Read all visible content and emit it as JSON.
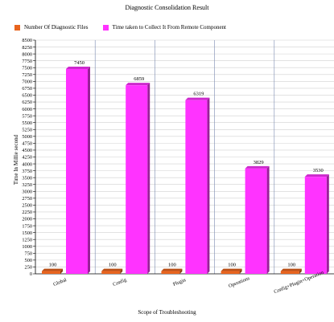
{
  "chart_data": {
    "type": "bar",
    "title": "Diagnostic Consolidation Result",
    "xlabel": "Scope of Troubleshooting",
    "ylabel": "Time In Millie second",
    "categories": [
      "Global",
      "Config",
      "Plugin",
      "Operations",
      "Config+Plugin+Operation"
    ],
    "series": [
      {
        "name": "Number Of Diagnostic Files",
        "values": [
          100,
          100,
          100,
          100,
          100
        ],
        "color": "#e8641e"
      },
      {
        "name": "Time taken to Collect It From Remote Component",
        "values": [
          7450,
          6859,
          6319,
          3829,
          3530
        ],
        "color": "#ff33ff"
      }
    ],
    "ylim": [
      0,
      8500
    ],
    "yticks": [
      0,
      250,
      500,
      750,
      1000,
      1250,
      1500,
      1750,
      2000,
      2250,
      2500,
      2750,
      3000,
      3250,
      3500,
      3750,
      4000,
      4250,
      4500,
      4750,
      5000,
      5250,
      5500,
      5750,
      6000,
      6250,
      6500,
      6750,
      7000,
      7250,
      7500,
      7750,
      8000,
      8250,
      8500
    ],
    "grid": true,
    "legend_position": "top-left"
  }
}
